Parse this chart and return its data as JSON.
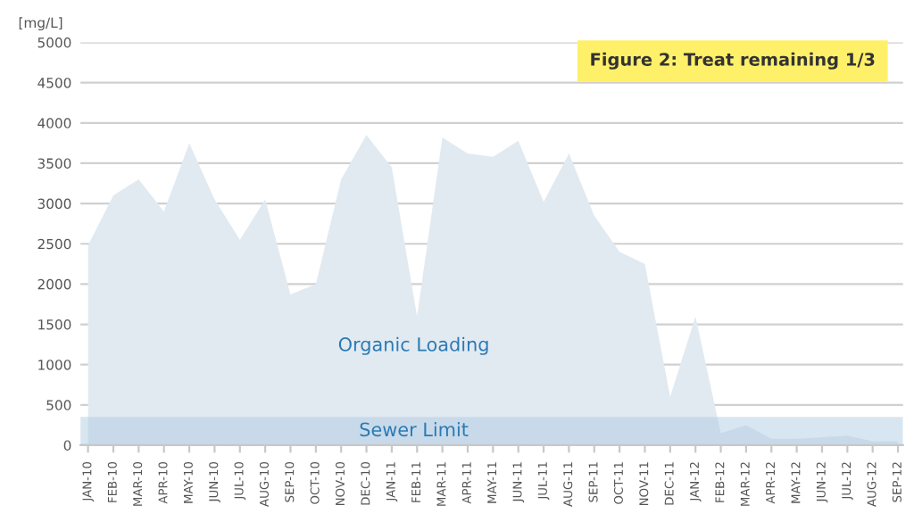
{
  "chart_data": {
    "type": "area",
    "title": "Figure 2: Treat remaining 1/3",
    "ylabel": "[mg/L]",
    "categories": [
      "JAN-10",
      "FEB-10",
      "MAR-10",
      "APR-10",
      "MAY-10",
      "JUN-10",
      "JUL-10",
      "AUG-10",
      "SEP-10",
      "OCT-10",
      "NOV-10",
      "DEC-10",
      "JAN-11",
      "FEB-11",
      "MAR-11",
      "APR-11",
      "MAY-11",
      "JUN-11",
      "JUL-11",
      "AUG-11",
      "SEP-11",
      "OCT-11",
      "NOV-11",
      "DEC-11",
      "JAN-12",
      "FEB-12",
      "MAR-12",
      "APR-12",
      "MAY-12",
      "JUN-12",
      "JUL-12",
      "AUG-12",
      "SEP-12"
    ],
    "series": [
      {
        "name": "Organic Loading",
        "color": "#e2eaf1",
        "values": [
          2480,
          3100,
          3300,
          2900,
          3750,
          3050,
          2550,
          3050,
          1870,
          2000,
          3300,
          3850,
          3450,
          1600,
          3820,
          3620,
          3580,
          3780,
          3020,
          3620,
          2850,
          2400,
          2250,
          600,
          1600,
          150,
          250,
          80,
          80,
          100,
          120,
          50,
          50
        ]
      }
    ],
    "bands": [
      {
        "axis": "y",
        "from": 0,
        "to": 350,
        "label": "Sewer Limit",
        "color": "#a9c8e0"
      }
    ],
    "ylim": [
      0,
      5000
    ],
    "yticks": [
      0,
      500,
      1000,
      1500,
      2000,
      2500,
      3000,
      3500,
      4000,
      4500,
      5000
    ],
    "grid": "y"
  }
}
